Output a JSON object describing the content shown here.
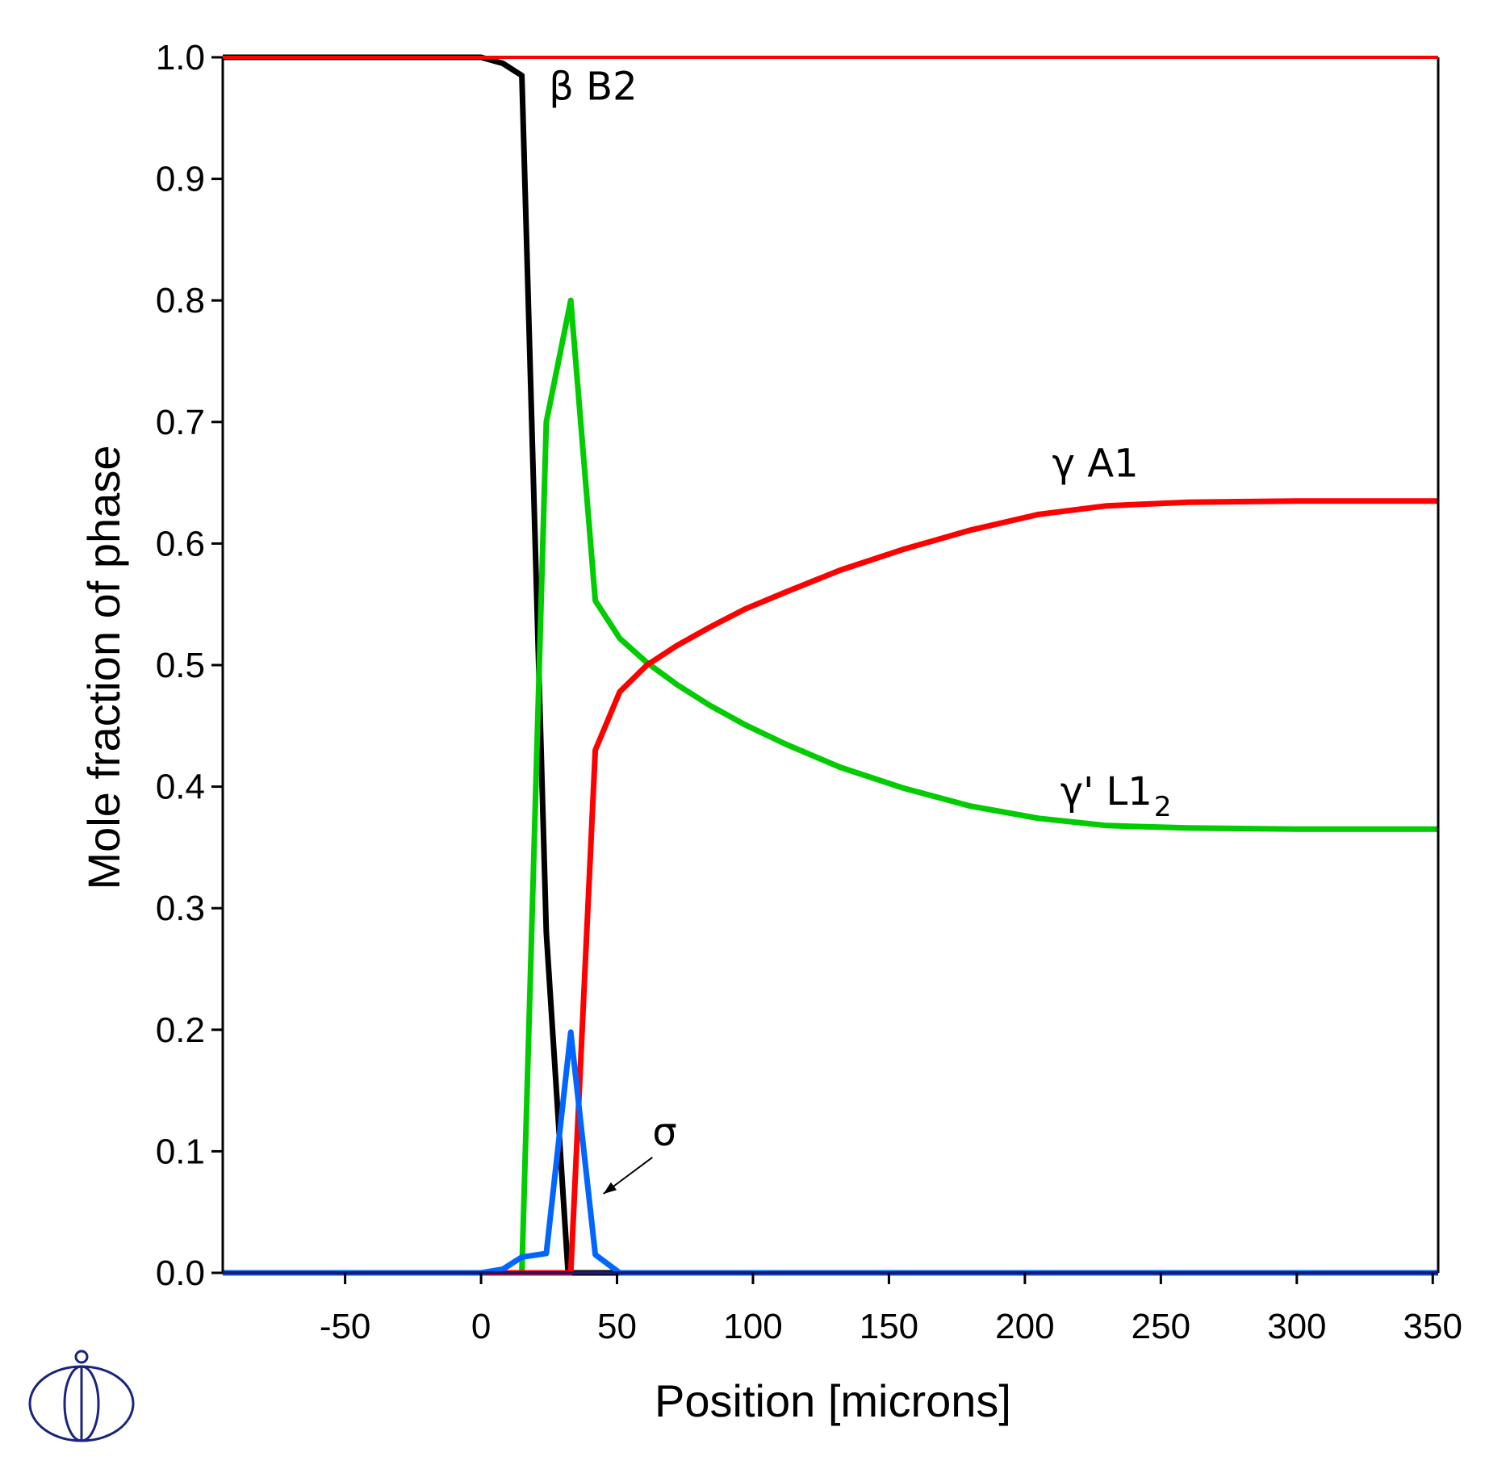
{
  "chart_data": {
    "type": "line",
    "title": "",
    "xlabel": "Position [microns]",
    "ylabel": "Mole fraction of phase",
    "xlim": [
      -95,
      352
    ],
    "ylim": [
      0,
      1
    ],
    "x_ticks": [
      -50,
      0,
      50,
      100,
      150,
      200,
      250,
      300,
      350
    ],
    "y_ticks": [
      0.0,
      0.1,
      0.2,
      0.3,
      0.4,
      0.5,
      0.6,
      0.7,
      0.8,
      0.9,
      1.0
    ],
    "x_tick_labels": [
      "-50",
      "0",
      "50",
      "100",
      "150",
      "200",
      "250",
      "300",
      "350"
    ],
    "y_tick_labels": [
      "0.0",
      "0.1",
      "0.2",
      "0.3",
      "0.4",
      "0.5",
      "0.6",
      "0.7",
      "0.8",
      "0.9",
      "1.0"
    ],
    "grid": false,
    "legend": "none",
    "series": [
      {
        "color": "#000000",
        "points": [
          [
            -95,
            1.0
          ],
          [
            0,
            1.0
          ],
          [
            8,
            0.995
          ],
          [
            15,
            0.985
          ],
          [
            24,
            0.28
          ],
          [
            32,
            0.0
          ],
          [
            352,
            0.0
          ]
        ]
      },
      {
        "color": "#00cc00",
        "points": [
          [
            -95,
            0.0
          ],
          [
            15,
            0.0
          ],
          [
            24,
            0.7
          ],
          [
            33,
            0.8
          ],
          [
            42,
            0.553
          ],
          [
            51,
            0.522
          ],
          [
            61,
            0.502
          ],
          [
            72,
            0.484
          ],
          [
            84,
            0.467
          ],
          [
            97,
            0.451
          ],
          [
            112,
            0.435
          ],
          [
            132,
            0.416
          ],
          [
            155,
            0.399
          ],
          [
            180,
            0.384
          ],
          [
            205,
            0.374
          ],
          [
            230,
            0.368
          ],
          [
            260,
            0.366
          ],
          [
            300,
            0.365
          ],
          [
            352,
            0.365
          ]
        ]
      },
      {
        "color": "#ff0000",
        "points": [
          [
            -95,
            0.0
          ],
          [
            33,
            0.0
          ],
          [
            42,
            0.43
          ],
          [
            51,
            0.478
          ],
          [
            61,
            0.5
          ],
          [
            72,
            0.516
          ],
          [
            84,
            0.531
          ],
          [
            97,
            0.546
          ],
          [
            112,
            0.56
          ],
          [
            132,
            0.578
          ],
          [
            155,
            0.595
          ],
          [
            180,
            0.611
          ],
          [
            205,
            0.624
          ],
          [
            230,
            0.631
          ],
          [
            260,
            0.634
          ],
          [
            300,
            0.635
          ],
          [
            352,
            0.635
          ]
        ]
      },
      {
        "color": "#0066ff",
        "points": [
          [
            -95,
            0.0
          ],
          [
            0,
            0.0
          ],
          [
            8,
            0.003
          ],
          [
            15,
            0.013
          ],
          [
            24,
            0.016
          ],
          [
            33,
            0.198
          ],
          [
            42,
            0.015
          ],
          [
            51,
            0.0
          ],
          [
            352,
            0.0
          ]
        ]
      }
    ],
    "annotations": [
      {
        "text": "β B2",
        "x": 25,
        "y": 0.965
      },
      {
        "text": "γ A1",
        "x": 210,
        "y": 0.655
      },
      {
        "text": "γ' L1",
        "sub": "2",
        "x": 213,
        "y": 0.385
      },
      {
        "text": "σ",
        "x": 63,
        "y": 0.105
      }
    ],
    "sigma_arrow": {
      "from": [
        63,
        0.095
      ],
      "to": [
        45,
        0.065
      ]
    }
  },
  "logo": {
    "color": "#1a237e"
  }
}
